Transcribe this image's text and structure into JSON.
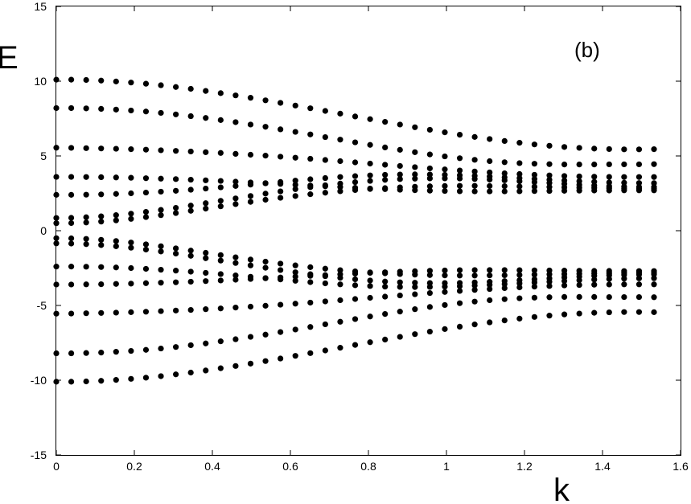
{
  "chart_data": {
    "type": "scatter",
    "title": "",
    "xlabel": "k",
    "ylabel": "E",
    "annotation": "(b)",
    "xlim": [
      0,
      1.6
    ],
    "ylim": [
      -15,
      15
    ],
    "xticks": [
      0,
      0.2,
      0.4,
      0.6,
      0.8,
      1,
      1.2,
      1.4,
      1.6
    ],
    "xtick_labels": [
      "0",
      "0.2",
      "0.4",
      "0.6",
      "0.8",
      "1",
      "1.2",
      "1.4",
      "1.6"
    ],
    "yticks": [
      -15,
      -10,
      -5,
      0,
      5,
      10,
      15
    ],
    "ytick_labels": [
      "-15",
      "-10",
      "-5",
      "0",
      "5",
      "10",
      "15"
    ],
    "grid": false,
    "marker_color": "#000000",
    "x": [
      0,
      0.0383,
      0.0766,
      0.1149,
      0.1532,
      0.1915,
      0.2298,
      0.2681,
      0.3064,
      0.3447,
      0.383,
      0.4213,
      0.4596,
      0.4979,
      0.5362,
      0.5745,
      0.6128,
      0.6511,
      0.6894,
      0.7277,
      0.766,
      0.8043,
      0.8426,
      0.8809,
      0.9192,
      0.9575,
      0.9958,
      1.0341,
      1.0724,
      1.1107,
      1.149,
      1.1873,
      1.2256,
      1.2639,
      1.3022,
      1.3405,
      1.3788,
      1.4171,
      1.4554,
      1.4937,
      1.532
    ],
    "series": [
      {
        "values": [
          10.1,
          10.1,
          10.08,
          10.04,
          9.98,
          9.91,
          9.83,
          9.73,
          9.61,
          9.49,
          9.35,
          9.2,
          9.05,
          8.89,
          8.72,
          8.55,
          8.37,
          8.19,
          8.01,
          7.83,
          7.64,
          7.46,
          7.28,
          7.1,
          6.92,
          6.75,
          6.58,
          6.42,
          6.27,
          6.13,
          6.0,
          5.88,
          5.77,
          5.68,
          5.6,
          5.54,
          5.49,
          5.46,
          5.44,
          5.44,
          5.45
        ]
      },
      {
        "values": [
          8.2,
          8.2,
          8.18,
          8.15,
          8.1,
          8.04,
          7.97,
          7.88,
          7.78,
          7.66,
          7.54,
          7.4,
          7.26,
          7.1,
          6.95,
          6.78,
          6.61,
          6.44,
          6.26,
          6.09,
          5.91,
          5.74,
          5.57,
          5.41,
          5.25,
          5.1,
          4.97,
          4.85,
          4.74,
          4.65,
          4.58,
          4.52,
          4.48,
          4.45,
          4.43,
          4.43,
          4.43,
          4.44,
          4.44,
          4.44,
          4.45
        ]
      },
      {
        "values": [
          5.55,
          5.54,
          5.52,
          5.5,
          5.48,
          5.45,
          5.42,
          5.38,
          5.34,
          5.3,
          5.25,
          5.2,
          5.14,
          5.08,
          5.02,
          4.95,
          4.88,
          4.81,
          4.73,
          4.65,
          4.57,
          4.49,
          4.41,
          4.33,
          4.25,
          4.17,
          4.1,
          4.03,
          3.96,
          3.9,
          3.84,
          3.79,
          3.74,
          3.7,
          3.66,
          3.63,
          3.61,
          3.6,
          3.59,
          3.59,
          3.59
        ]
      },
      {
        "values": [
          3.6,
          3.6,
          3.59,
          3.58,
          3.56,
          3.54,
          3.51,
          3.48,
          3.45,
          3.41,
          3.37,
          3.33,
          3.28,
          3.23,
          3.18,
          3.13,
          3.07,
          3.02,
          2.97,
          2.92,
          2.87,
          2.82,
          2.78,
          2.74,
          2.71,
          2.68,
          2.66,
          2.64,
          2.63,
          2.63,
          2.63,
          2.64,
          2.65,
          2.66,
          2.67,
          2.68,
          2.69,
          2.69,
          2.7,
          2.7,
          2.7
        ]
      },
      {
        "values": [
          2.4,
          2.4,
          2.41,
          2.43,
          2.46,
          2.5,
          2.55,
          2.61,
          2.67,
          2.74,
          2.82,
          2.9,
          2.99,
          3.08,
          3.17,
          3.26,
          3.35,
          3.44,
          3.52,
          3.59,
          3.65,
          3.7,
          3.74,
          3.76,
          3.77,
          3.76,
          3.74,
          3.71,
          3.67,
          3.62,
          3.57,
          3.52,
          3.46,
          3.41,
          3.36,
          3.31,
          3.27,
          3.23,
          3.21,
          3.19,
          3.18
        ]
      },
      {
        "values": [
          0.85,
          0.86,
          0.9,
          0.96,
          1.04,
          1.14,
          1.26,
          1.39,
          1.53,
          1.68,
          1.84,
          2.0,
          2.16,
          2.32,
          2.48,
          2.63,
          2.78,
          2.91,
          3.04,
          3.15,
          3.25,
          3.33,
          3.4,
          3.45,
          3.48,
          3.5,
          3.5,
          3.49,
          3.46,
          3.42,
          3.37,
          3.31,
          3.25,
          3.19,
          3.13,
          3.07,
          3.02,
          2.98,
          2.95,
          2.93,
          2.92
        ]
      },
      {
        "values": [
          0.5,
          0.51,
          0.55,
          0.61,
          0.69,
          0.79,
          0.91,
          1.04,
          1.18,
          1.33,
          1.48,
          1.63,
          1.78,
          1.93,
          2.07,
          2.2,
          2.32,
          2.44,
          2.54,
          2.64,
          2.72,
          2.79,
          2.85,
          2.9,
          2.94,
          2.97,
          2.99,
          3.0,
          3.0,
          2.99,
          2.98,
          2.96,
          2.94,
          2.92,
          2.9,
          2.88,
          2.86,
          2.84,
          2.83,
          2.82,
          2.82
        ]
      },
      {
        "values": [
          -0.5,
          -0.51,
          -0.55,
          -0.61,
          -0.69,
          -0.79,
          -0.91,
          -1.04,
          -1.18,
          -1.33,
          -1.48,
          -1.63,
          -1.78,
          -1.93,
          -2.07,
          -2.2,
          -2.32,
          -2.44,
          -2.54,
          -2.64,
          -2.72,
          -2.79,
          -2.85,
          -2.9,
          -2.94,
          -2.97,
          -2.99,
          -3.0,
          -3.0,
          -2.99,
          -2.98,
          -2.96,
          -2.94,
          -2.92,
          -2.9,
          -2.88,
          -2.86,
          -2.84,
          -2.83,
          -2.82,
          -2.82
        ]
      },
      {
        "values": [
          -0.85,
          -0.86,
          -0.9,
          -0.96,
          -1.04,
          -1.14,
          -1.26,
          -1.39,
          -1.53,
          -1.68,
          -1.84,
          -2.0,
          -2.16,
          -2.32,
          -2.48,
          -2.63,
          -2.78,
          -2.91,
          -3.04,
          -3.15,
          -3.25,
          -3.33,
          -3.4,
          -3.45,
          -3.48,
          -3.5,
          -3.5,
          -3.49,
          -3.46,
          -3.42,
          -3.37,
          -3.31,
          -3.25,
          -3.19,
          -3.13,
          -3.07,
          -3.02,
          -2.98,
          -2.95,
          -2.93,
          -2.92
        ]
      },
      {
        "values": [
          -2.4,
          -2.4,
          -2.41,
          -2.43,
          -2.46,
          -2.5,
          -2.55,
          -2.61,
          -2.67,
          -2.74,
          -2.82,
          -2.9,
          -2.99,
          -3.08,
          -3.17,
          -3.26,
          -3.35,
          -3.44,
          -3.52,
          -3.59,
          -3.65,
          -3.7,
          -3.74,
          -3.76,
          -3.77,
          -3.76,
          -3.74,
          -3.71,
          -3.67,
          -3.62,
          -3.57,
          -3.52,
          -3.46,
          -3.41,
          -3.36,
          -3.31,
          -3.27,
          -3.23,
          -3.21,
          -3.19,
          -3.18
        ]
      },
      {
        "values": [
          -3.6,
          -3.6,
          -3.59,
          -3.58,
          -3.56,
          -3.54,
          -3.51,
          -3.48,
          -3.45,
          -3.41,
          -3.37,
          -3.33,
          -3.28,
          -3.23,
          -3.18,
          -3.13,
          -3.07,
          -3.02,
          -2.97,
          -2.92,
          -2.87,
          -2.82,
          -2.78,
          -2.74,
          -2.71,
          -2.68,
          -2.66,
          -2.64,
          -2.63,
          -2.63,
          -2.63,
          -2.64,
          -2.65,
          -2.66,
          -2.67,
          -2.68,
          -2.69,
          -2.69,
          -2.7,
          -2.7,
          -2.7
        ]
      },
      {
        "values": [
          -5.55,
          -5.54,
          -5.52,
          -5.5,
          -5.48,
          -5.45,
          -5.42,
          -5.38,
          -5.34,
          -5.3,
          -5.25,
          -5.2,
          -5.14,
          -5.08,
          -5.02,
          -4.95,
          -4.88,
          -4.81,
          -4.73,
          -4.65,
          -4.57,
          -4.49,
          -4.41,
          -4.33,
          -4.25,
          -4.17,
          -4.1,
          -4.03,
          -3.96,
          -3.9,
          -3.84,
          -3.79,
          -3.74,
          -3.7,
          -3.66,
          -3.63,
          -3.61,
          -3.6,
          -3.59,
          -3.59,
          -3.59
        ]
      },
      {
        "values": [
          -8.2,
          -8.2,
          -8.18,
          -8.15,
          -8.1,
          -8.04,
          -7.97,
          -7.88,
          -7.78,
          -7.66,
          -7.54,
          -7.4,
          -7.26,
          -7.1,
          -6.95,
          -6.78,
          -6.61,
          -6.44,
          -6.26,
          -6.09,
          -5.91,
          -5.74,
          -5.57,
          -5.41,
          -5.25,
          -5.1,
          -4.97,
          -4.85,
          -4.74,
          -4.65,
          -4.58,
          -4.52,
          -4.48,
          -4.45,
          -4.43,
          -4.43,
          -4.43,
          -4.44,
          -4.44,
          -4.44,
          -4.45
        ]
      },
      {
        "values": [
          -10.1,
          -10.1,
          -10.08,
          -10.04,
          -9.98,
          -9.91,
          -9.83,
          -9.73,
          -9.61,
          -9.49,
          -9.35,
          -9.2,
          -9.05,
          -8.89,
          -8.72,
          -8.55,
          -8.37,
          -8.19,
          -8.01,
          -7.83,
          -7.64,
          -7.46,
          -7.28,
          -7.1,
          -6.92,
          -6.75,
          -6.58,
          -6.42,
          -6.27,
          -6.13,
          -6.0,
          -5.88,
          -5.77,
          -5.68,
          -5.6,
          -5.54,
          -5.49,
          -5.46,
          -5.44,
          -5.44,
          -5.45
        ]
      }
    ]
  }
}
